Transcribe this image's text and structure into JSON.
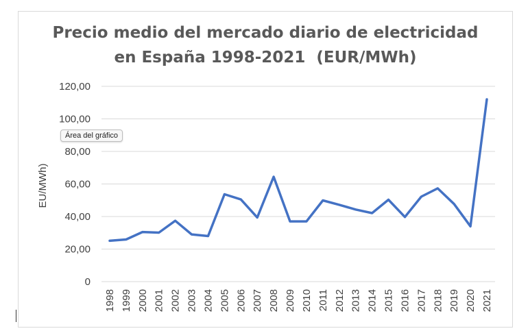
{
  "chart_data": {
    "type": "line",
    "title_lines": [
      "Precio medio del mercado diario de electricidad",
      "en España 1998-2021  (EUR/MWh)"
    ],
    "xlabel": "",
    "ylabel": "EU/MWh)",
    "ylim": [
      0,
      120
    ],
    "yticks": [
      0,
      20,
      40,
      60,
      80,
      100,
      120
    ],
    "ytick_labels": [
      "0",
      "20,00",
      "40,00",
      "60,00",
      "80,00",
      "100,00",
      "120,00"
    ],
    "grid": true,
    "legend": "none",
    "categories": [
      "1998",
      "1999",
      "2000",
      "2001",
      "2002",
      "2003",
      "2004",
      "2005",
      "2006",
      "2007",
      "2008",
      "2009",
      "2010",
      "2011",
      "2012",
      "2013",
      "2014",
      "2015",
      "2016",
      "2017",
      "2018",
      "2019",
      "2020",
      "2021"
    ],
    "series": [
      {
        "color": "#4472C4",
        "values": [
          25.1,
          25.9,
          30.5,
          30.1,
          37.4,
          29.0,
          28.0,
          53.7,
          50.5,
          39.4,
          64.4,
          37.0,
          37.0,
          49.9,
          47.2,
          44.3,
          42.1,
          50.3,
          39.7,
          52.2,
          57.3,
          47.7,
          34.0,
          112.0
        ]
      }
    ]
  },
  "tooltip": {
    "text": "Área del gráfico"
  }
}
